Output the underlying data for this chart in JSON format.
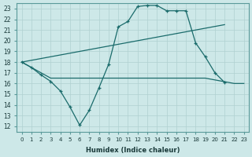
{
  "xlabel": "Humidex (Indice chaleur)",
  "x_ticks": [
    0,
    1,
    2,
    3,
    4,
    5,
    6,
    7,
    8,
    9,
    10,
    11,
    12,
    13,
    14,
    15,
    16,
    17,
    18,
    19,
    20,
    21,
    22,
    23
  ],
  "yticks": [
    12,
    13,
    14,
    15,
    16,
    17,
    18,
    19,
    20,
    21,
    22,
    23
  ],
  "bg_color": "#cde8e8",
  "grid_color": "#b0d0d0",
  "line_color": "#1a6b6b",
  "line1_x": [
    0,
    1,
    2,
    3,
    4,
    5,
    6,
    7,
    8,
    9,
    10,
    11,
    12,
    13,
    14,
    15,
    16,
    17,
    18,
    19,
    20,
    21,
    22,
    23
  ],
  "line1_y": [
    18.0,
    17.5,
    16.8,
    16.2,
    15.3,
    13.8,
    12.1,
    13.5,
    15.6,
    17.8,
    21.3,
    21.8,
    23.2,
    23.3,
    23.3,
    22.8,
    22.8,
    22.8,
    19.8,
    18.5,
    17.0,
    16.1,
    null,
    null
  ],
  "line2_x": [
    0,
    21
  ],
  "line2_y": [
    18.0,
    21.5
  ],
  "line3_x": [
    0,
    3,
    19,
    22,
    23
  ],
  "line3_y": [
    18.0,
    16.5,
    16.5,
    16.0,
    16.0
  ]
}
